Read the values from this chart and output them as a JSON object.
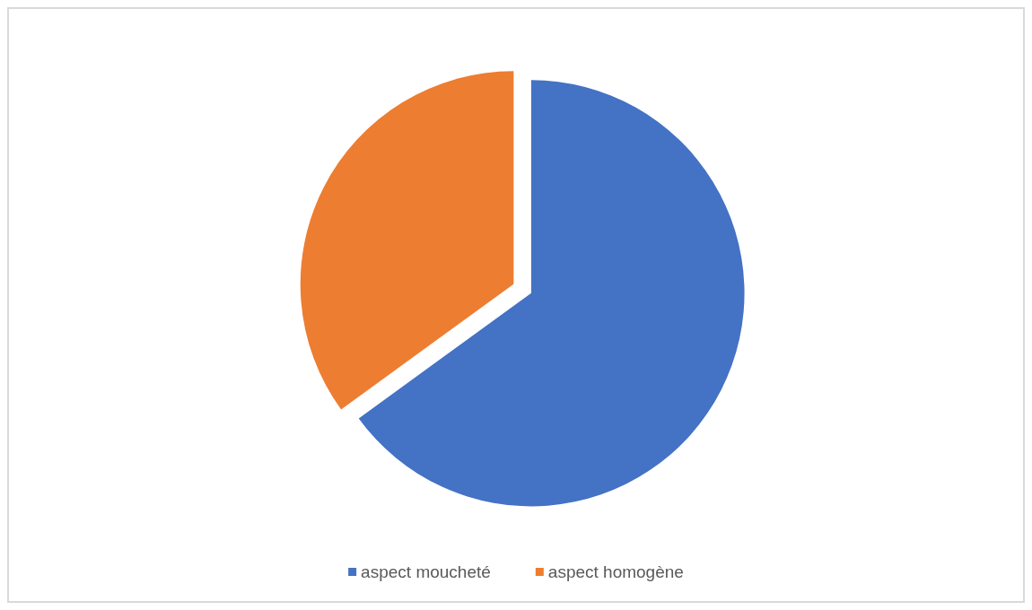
{
  "chart_data": {
    "type": "pie",
    "categories": [
      "aspect moucheté",
      "aspect homogène"
    ],
    "values": [
      65,
      35
    ],
    "colors": [
      "#4472c4",
      "#ed7d31"
    ],
    "legend": "bottom"
  }
}
